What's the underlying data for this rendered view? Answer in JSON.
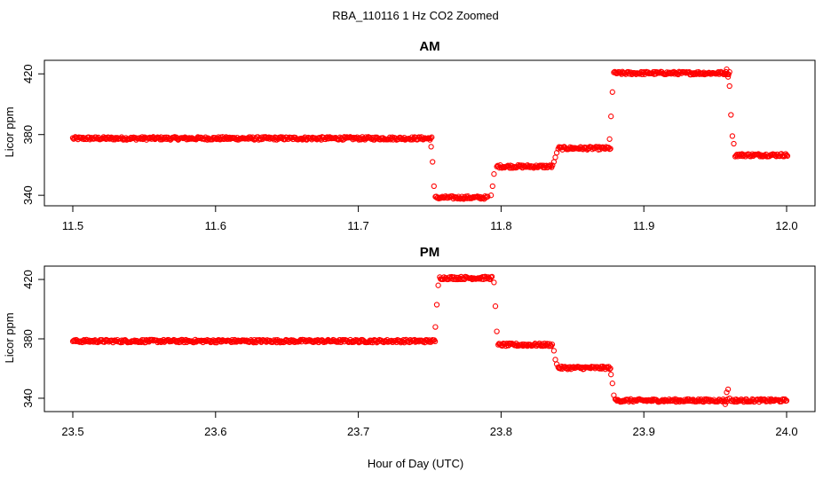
{
  "figure": {
    "title": "RBA_110116  1 Hz CO2 Zoomed",
    "xlabel": "Hour of Day (UTC)"
  },
  "colors": {
    "points": "#ff0000",
    "frame": "#000000"
  },
  "chart_data": [
    {
      "type": "scatter",
      "title": "AM",
      "ylabel": "Licor ppm",
      "xlim": [
        11.5,
        12.0
      ],
      "ylim": [
        336,
        426
      ],
      "xticks": [
        11.5,
        11.6,
        11.7,
        11.8,
        11.9,
        12.0
      ],
      "xtick_labels": [
        "11.5",
        "11.6",
        "11.7",
        "11.8",
        "11.9",
        "12.0"
      ],
      "yticks": [
        340,
        380,
        420
      ],
      "ytick_labels": [
        "340",
        "380",
        "420"
      ],
      "segments": [
        {
          "x0": 11.5,
          "x1": 11.751,
          "y": 377.5,
          "noise": 1.0
        },
        {
          "x0": 11.754,
          "x1": 11.791,
          "y": 338.5,
          "noise": 1.0
        },
        {
          "x0": 11.797,
          "x1": 11.836,
          "y": 359.0,
          "noise": 1.0
        },
        {
          "x0": 11.84,
          "x1": 11.876,
          "y": 371.0,
          "noise": 1.0
        },
        {
          "x0": 11.879,
          "x1": 11.96,
          "y": 420.5,
          "noise": 1.0
        },
        {
          "x0": 11.964,
          "x1": 12.0,
          "y": 366.5,
          "noise": 1.0
        }
      ],
      "transitions": [
        {
          "x": 11.751,
          "y": 372
        },
        {
          "x": 11.752,
          "y": 362
        },
        {
          "x": 11.753,
          "y": 346
        },
        {
          "x": 11.793,
          "y": 340
        },
        {
          "x": 11.794,
          "y": 346
        },
        {
          "x": 11.795,
          "y": 354
        },
        {
          "x": 11.837,
          "y": 362
        },
        {
          "x": 11.838,
          "y": 365
        },
        {
          "x": 11.839,
          "y": 368
        },
        {
          "x": 11.876,
          "y": 377
        },
        {
          "x": 11.877,
          "y": 392
        },
        {
          "x": 11.878,
          "y": 408
        },
        {
          "x": 11.958,
          "y": 423
        },
        {
          "x": 11.959,
          "y": 418
        },
        {
          "x": 11.96,
          "y": 412
        },
        {
          "x": 11.961,
          "y": 393
        },
        {
          "x": 11.962,
          "y": 379
        },
        {
          "x": 11.963,
          "y": 374
        }
      ]
    },
    {
      "type": "scatter",
      "title": "PM",
      "ylabel": "Licor ppm",
      "xlim": [
        23.5,
        24.0
      ],
      "ylim": [
        334,
        426
      ],
      "xticks": [
        23.5,
        23.6,
        23.7,
        23.8,
        23.9,
        24.0
      ],
      "xtick_labels": [
        "23.5",
        "23.6",
        "23.7",
        "23.8",
        "23.9",
        "24.0"
      ],
      "yticks": [
        340,
        380,
        420
      ],
      "ytick_labels": [
        "340",
        "380",
        "420"
      ],
      "segments": [
        {
          "x0": 23.5,
          "x1": 23.754,
          "y": 378.5,
          "noise": 1.0
        },
        {
          "x0": 23.757,
          "x1": 23.794,
          "y": 421.0,
          "noise": 1.0
        },
        {
          "x0": 23.798,
          "x1": 23.836,
          "y": 376.0,
          "noise": 1.0
        },
        {
          "x0": 23.84,
          "x1": 23.877,
          "y": 360.5,
          "noise": 1.0
        },
        {
          "x0": 23.88,
          "x1": 23.958,
          "y": 338.5,
          "noise": 1.0
        },
        {
          "x0": 23.961,
          "x1": 24.0,
          "y": 338.5,
          "noise": 1.0
        }
      ],
      "transitions": [
        {
          "x": 23.754,
          "y": 388
        },
        {
          "x": 23.755,
          "y": 403
        },
        {
          "x": 23.756,
          "y": 416
        },
        {
          "x": 23.795,
          "y": 418
        },
        {
          "x": 23.796,
          "y": 402
        },
        {
          "x": 23.797,
          "y": 385
        },
        {
          "x": 23.837,
          "y": 372
        },
        {
          "x": 23.838,
          "y": 366
        },
        {
          "x": 23.839,
          "y": 363
        },
        {
          "x": 23.877,
          "y": 356
        },
        {
          "x": 23.878,
          "y": 350
        },
        {
          "x": 23.879,
          "y": 342
        },
        {
          "x": 23.958,
          "y": 344
        },
        {
          "x": 23.959,
          "y": 346
        },
        {
          "x": 23.96,
          "y": 340
        },
        {
          "x": 23.957,
          "y": 336
        }
      ]
    }
  ]
}
